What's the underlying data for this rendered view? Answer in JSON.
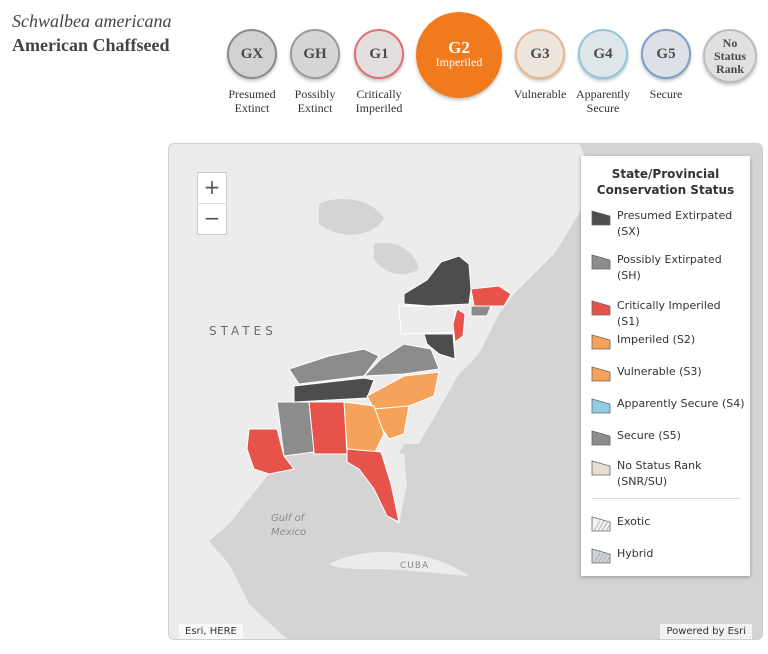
{
  "species": {
    "scientific_name": "Schwalbea americana",
    "common_name": "American Chaffseed"
  },
  "global_ranks": [
    {
      "code": "GX",
      "label_1": "Presumed",
      "label_2": "Extinct",
      "sub": "",
      "fill": "#d2d2d2",
      "border": "#8a8a8a",
      "text_color": "#4a4a4a",
      "selected": false
    },
    {
      "code": "GH",
      "label_1": "Possibly",
      "label_2": "Extinct",
      "sub": "",
      "fill": "#d6d6d6",
      "border": "#9a9a9a",
      "text_color": "#4a4a4a",
      "selected": false
    },
    {
      "code": "G1",
      "label_1": "Critically",
      "label_2": "Imperiled",
      "sub": "",
      "fill": "#e5dede",
      "border": "#e07070",
      "text_color": "#4a4a4a",
      "selected": false
    },
    {
      "code": "G2",
      "label_1": "",
      "label_2": "",
      "sub": "Imperiled",
      "fill": "#f07a1c",
      "border": "#f07a1c",
      "text_color": "#ffffff",
      "selected": true
    },
    {
      "code": "G3",
      "label_1": "Vulnerable",
      "label_2": "",
      "sub": "",
      "fill": "#ece6dc",
      "border": "#e8b88a",
      "text_color": "#4a4a4a",
      "selected": false
    },
    {
      "code": "G4",
      "label_1": "Apparently",
      "label_2": "Secure",
      "sub": "",
      "fill": "#dfe6ea",
      "border": "#8fc7de",
      "text_color": "#4a4a4a",
      "selected": false
    },
    {
      "code": "G5",
      "label_1": "Secure",
      "label_2": "",
      "sub": "",
      "fill": "#dde0e6",
      "border": "#7b9fc6",
      "text_color": "#4a4a4a",
      "selected": false
    },
    {
      "code": "No Status Rank",
      "label_1": "",
      "label_2": "",
      "sub": "",
      "fill": "#e0e0e0",
      "border": "#bdbdbd",
      "text_color": "#4a4a4a",
      "selected": false
    }
  ],
  "map": {
    "zoom_in": "+",
    "zoom_out": "−",
    "labels": {
      "states": "STATES",
      "gulf_1": "Gulf of",
      "gulf_2": "Mexico",
      "cuba": "CUBA"
    },
    "attribution_left": "Esri, HERE",
    "attribution_right": "Powered by Esri",
    "status_colors": {
      "SX": "#4d4d4d",
      "SH": "#8c8c8c",
      "S1": "#e5534b",
      "S2": "#f5a35a",
      "S3": "#f5a35a",
      "S4": "#8fcbe3",
      "S5": "#8c8c8c",
      "SNR": "#e8ddd2"
    }
  },
  "legend": {
    "title_1": "State/Provincial",
    "title_2": "Conservation Status",
    "items": [
      {
        "label_1": "Presumed Extirpated",
        "label_2": "(SX)",
        "fill": "#4d4d4d"
      },
      {
        "label_1": "Possibly Extirpated",
        "label_2": "(SH)",
        "fill": "#8c8c8c"
      },
      {
        "label_1": "Critically Imperiled (S1)",
        "label_2": "",
        "fill": "#e5534b"
      },
      {
        "label_1": "Imperiled (S2)",
        "label_2": "",
        "fill": "#f5a35a"
      },
      {
        "label_1": "Vulnerable (S3)",
        "label_2": "",
        "fill": "#f5a35a"
      },
      {
        "label_1": "Apparently Secure (S4)",
        "label_2": "",
        "fill": "#8fcbe3"
      },
      {
        "label_1": "Secure (S5)",
        "label_2": "",
        "fill": "#8c8c8c"
      },
      {
        "label_1": "No Status Rank",
        "label_2": "(SNR/SU)",
        "fill": "#e8ddd2"
      },
      {
        "label_1": "Exotic",
        "label_2": "",
        "fill": "#f2f2f2"
      },
      {
        "label_1": "Hybrid",
        "label_2": "",
        "fill": "#d0d3d8"
      }
    ]
  }
}
